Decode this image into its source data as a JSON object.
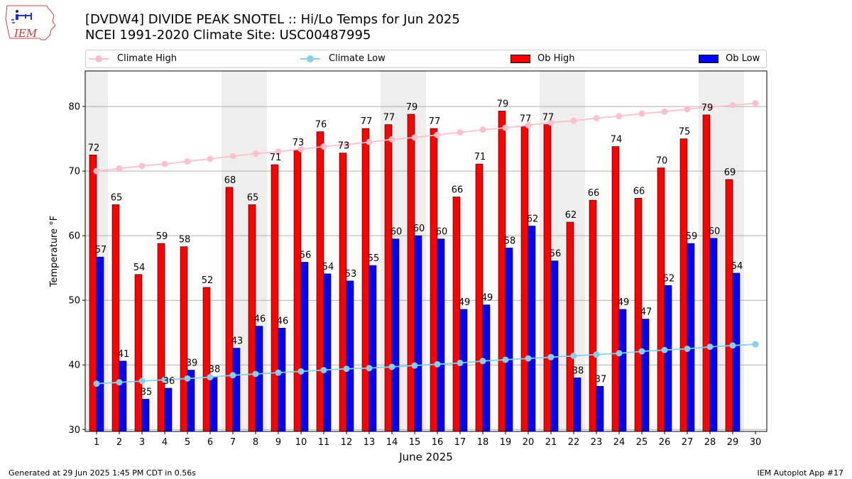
{
  "header": {
    "title_line1": "[DVDW4] DIVIDE PEAK SNOTEL :: Hi/Lo Temps for Jun 2025",
    "title_line2": "NCEI 1991-2020 Climate Site: USC00487995",
    "logo_text": "IEM"
  },
  "legend": {
    "climate_high": "Climate High",
    "climate_low": "Climate Low",
    "ob_high": "Ob High",
    "ob_low": "Ob Low"
  },
  "footer": {
    "left": "Generated at 29 Jun 2025 1:45 PM CDT in 0.56s",
    "right": "IEM Autoplot App #17"
  },
  "colors": {
    "ob_high": "#ff0000",
    "ob_low": "#0000ff",
    "climate_high": "#ffc0cb",
    "climate_low": "#87ceeb",
    "weekend_shade": "#eeeeee",
    "grid": "#b0b0b0"
  },
  "chart_data": {
    "type": "bar",
    "xlabel": "June 2025",
    "ylabel": "Temperature °F",
    "ylim": [
      29.7,
      85.5
    ],
    "yticks": [
      30,
      40,
      50,
      60,
      70,
      80
    ],
    "grid": true,
    "legend_position": "top",
    "categories": [
      1,
      2,
      3,
      4,
      5,
      6,
      7,
      8,
      9,
      10,
      11,
      12,
      13,
      14,
      15,
      16,
      17,
      18,
      19,
      20,
      21,
      22,
      23,
      24,
      25,
      26,
      27,
      28,
      29,
      30
    ],
    "shaded_days": [
      1,
      7,
      8,
      14,
      15,
      21,
      22,
      28,
      29
    ],
    "series": [
      {
        "name": "Ob High",
        "type": "bar",
        "values": [
          72.5,
          64.8,
          54.0,
          58.8,
          58.3,
          52.0,
          67.5,
          64.8,
          71.0,
          73.3,
          76.1,
          72.8,
          76.6,
          77.2,
          78.8,
          76.6,
          66.0,
          71.1,
          79.3,
          77.0,
          77.2,
          62.1,
          65.5,
          73.8,
          65.8,
          70.5,
          75.0,
          78.7,
          68.7,
          null
        ],
        "labels": [
          "72",
          "65",
          "54",
          "59",
          "58",
          "52",
          "68",
          "65",
          "71",
          "73",
          "76",
          "73",
          "77",
          "77",
          "79",
          "77",
          "66",
          "71",
          "79",
          "77",
          "77",
          "62",
          "66",
          "74",
          "66",
          "70",
          "75",
          "79",
          "69",
          ""
        ]
      },
      {
        "name": "Ob Low",
        "type": "bar",
        "values": [
          56.7,
          40.6,
          34.7,
          36.4,
          39.2,
          38.2,
          42.6,
          46.0,
          45.7,
          55.9,
          54.1,
          53.0,
          55.4,
          59.5,
          60.0,
          59.5,
          48.6,
          49.3,
          58.1,
          61.5,
          56.1,
          38.0,
          36.7,
          48.6,
          47.1,
          52.3,
          58.8,
          59.6,
          54.2,
          null
        ],
        "labels": [
          "57",
          "41",
          "35",
          "36",
          "39",
          "38",
          "43",
          "46",
          "46",
          "56",
          "54",
          "53",
          "55",
          "60",
          "60",
          "60",
          "49",
          "49",
          "58",
          "62",
          "56",
          "38",
          "37",
          "49",
          "47",
          "52",
          "59",
          "60",
          "54",
          ""
        ]
      },
      {
        "name": "Climate High",
        "type": "line",
        "values": [
          70.0,
          70.4,
          70.8,
          71.1,
          71.5,
          71.9,
          72.3,
          72.7,
          73.0,
          73.4,
          73.8,
          74.1,
          74.5,
          74.9,
          75.2,
          75.6,
          76.0,
          76.4,
          76.7,
          77.1,
          77.5,
          77.8,
          78.2,
          78.5,
          78.9,
          79.2,
          79.6,
          79.9,
          80.2,
          80.5
        ]
      },
      {
        "name": "Climate Low",
        "type": "line",
        "values": [
          37.1,
          37.3,
          37.5,
          37.7,
          37.9,
          38.1,
          38.4,
          38.6,
          38.8,
          39.0,
          39.2,
          39.4,
          39.5,
          39.7,
          39.9,
          40.1,
          40.3,
          40.6,
          40.8,
          41.0,
          41.2,
          41.4,
          41.6,
          41.8,
          42.1,
          42.3,
          42.5,
          42.8,
          43.0,
          43.2
        ]
      }
    ]
  }
}
